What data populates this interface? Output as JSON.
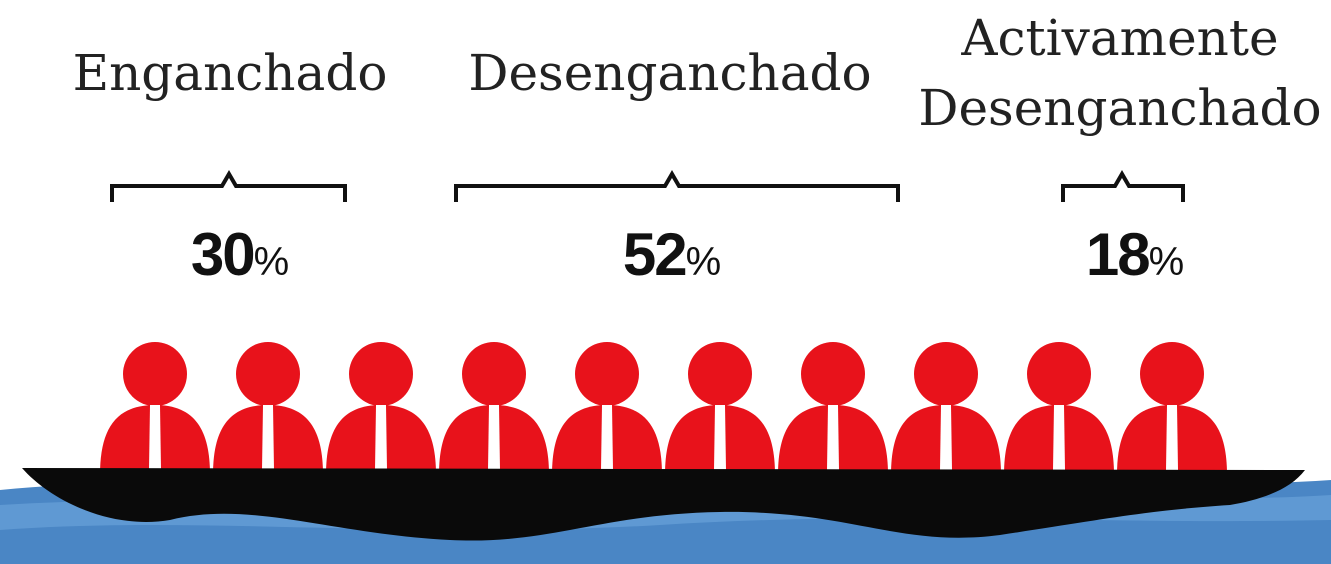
{
  "unit": "%",
  "groups": [
    {
      "label": "Enganchado",
      "percent": 30
    },
    {
      "label": "Desenganchado",
      "percent": 52
    },
    {
      "label": "Activamente Desenganchado",
      "percent": 18
    }
  ]
}
